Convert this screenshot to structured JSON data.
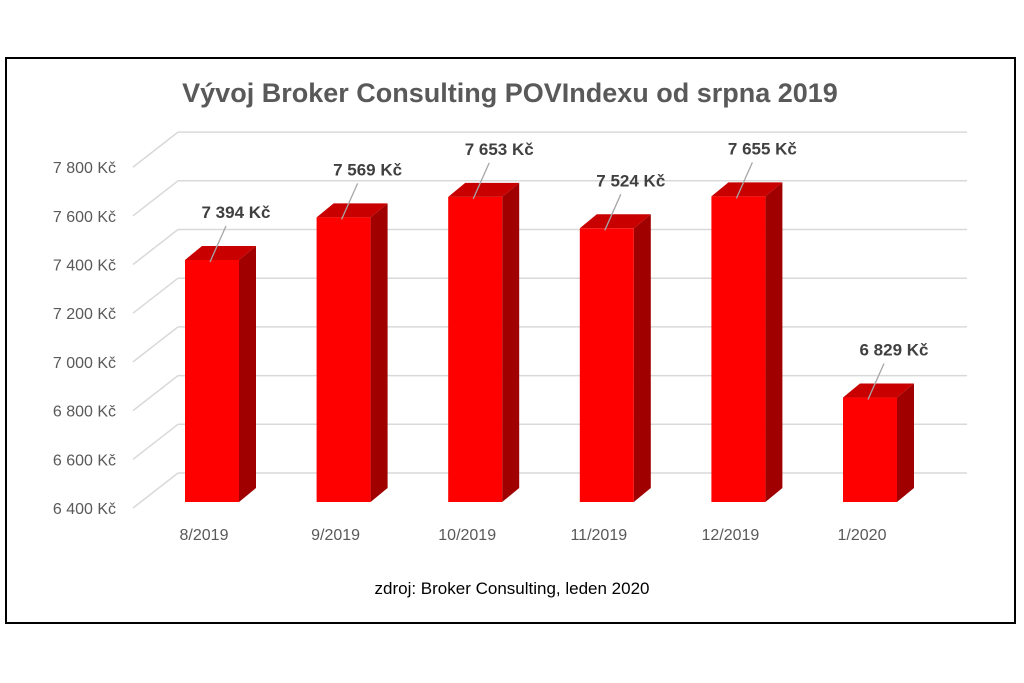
{
  "chart_data": {
    "type": "bar",
    "style": "3d-column",
    "title": "Vývoj Broker Consulting POVIndexu od srpna 2019",
    "categories": [
      "8/2019",
      "9/2019",
      "10/2019",
      "11/2019",
      "12/2019",
      "1/2020"
    ],
    "values": [
      7394,
      7569,
      7653,
      7524,
      7655,
      6829
    ],
    "data_labels": [
      "7 394 Kč",
      "7 569 Kč",
      "7 653 Kč",
      "7 524 Kč",
      "7 655 Kč",
      "6 829 Kč"
    ],
    "ylim": [
      6400,
      7800
    ],
    "yticks": [
      6400,
      6600,
      6800,
      7000,
      7200,
      7400,
      7600,
      7800
    ],
    "ytick_labels": [
      "6 400 Kč",
      "6 600 Kč",
      "6 800 Kč",
      "7 000 Kč",
      "7 200 Kč",
      "7 400 Kč",
      "7 600 Kč",
      "7 800 Kč"
    ],
    "grid": true,
    "xlabel": "",
    "ylabel": "",
    "source_note": "zdroj: Broker Consulting, leden 2020",
    "colors": {
      "bar_front": "#ff0000",
      "bar_side": "#a00000",
      "bar_top": "#c80000",
      "grid": "#d9d9d9",
      "text": "#595959"
    }
  }
}
